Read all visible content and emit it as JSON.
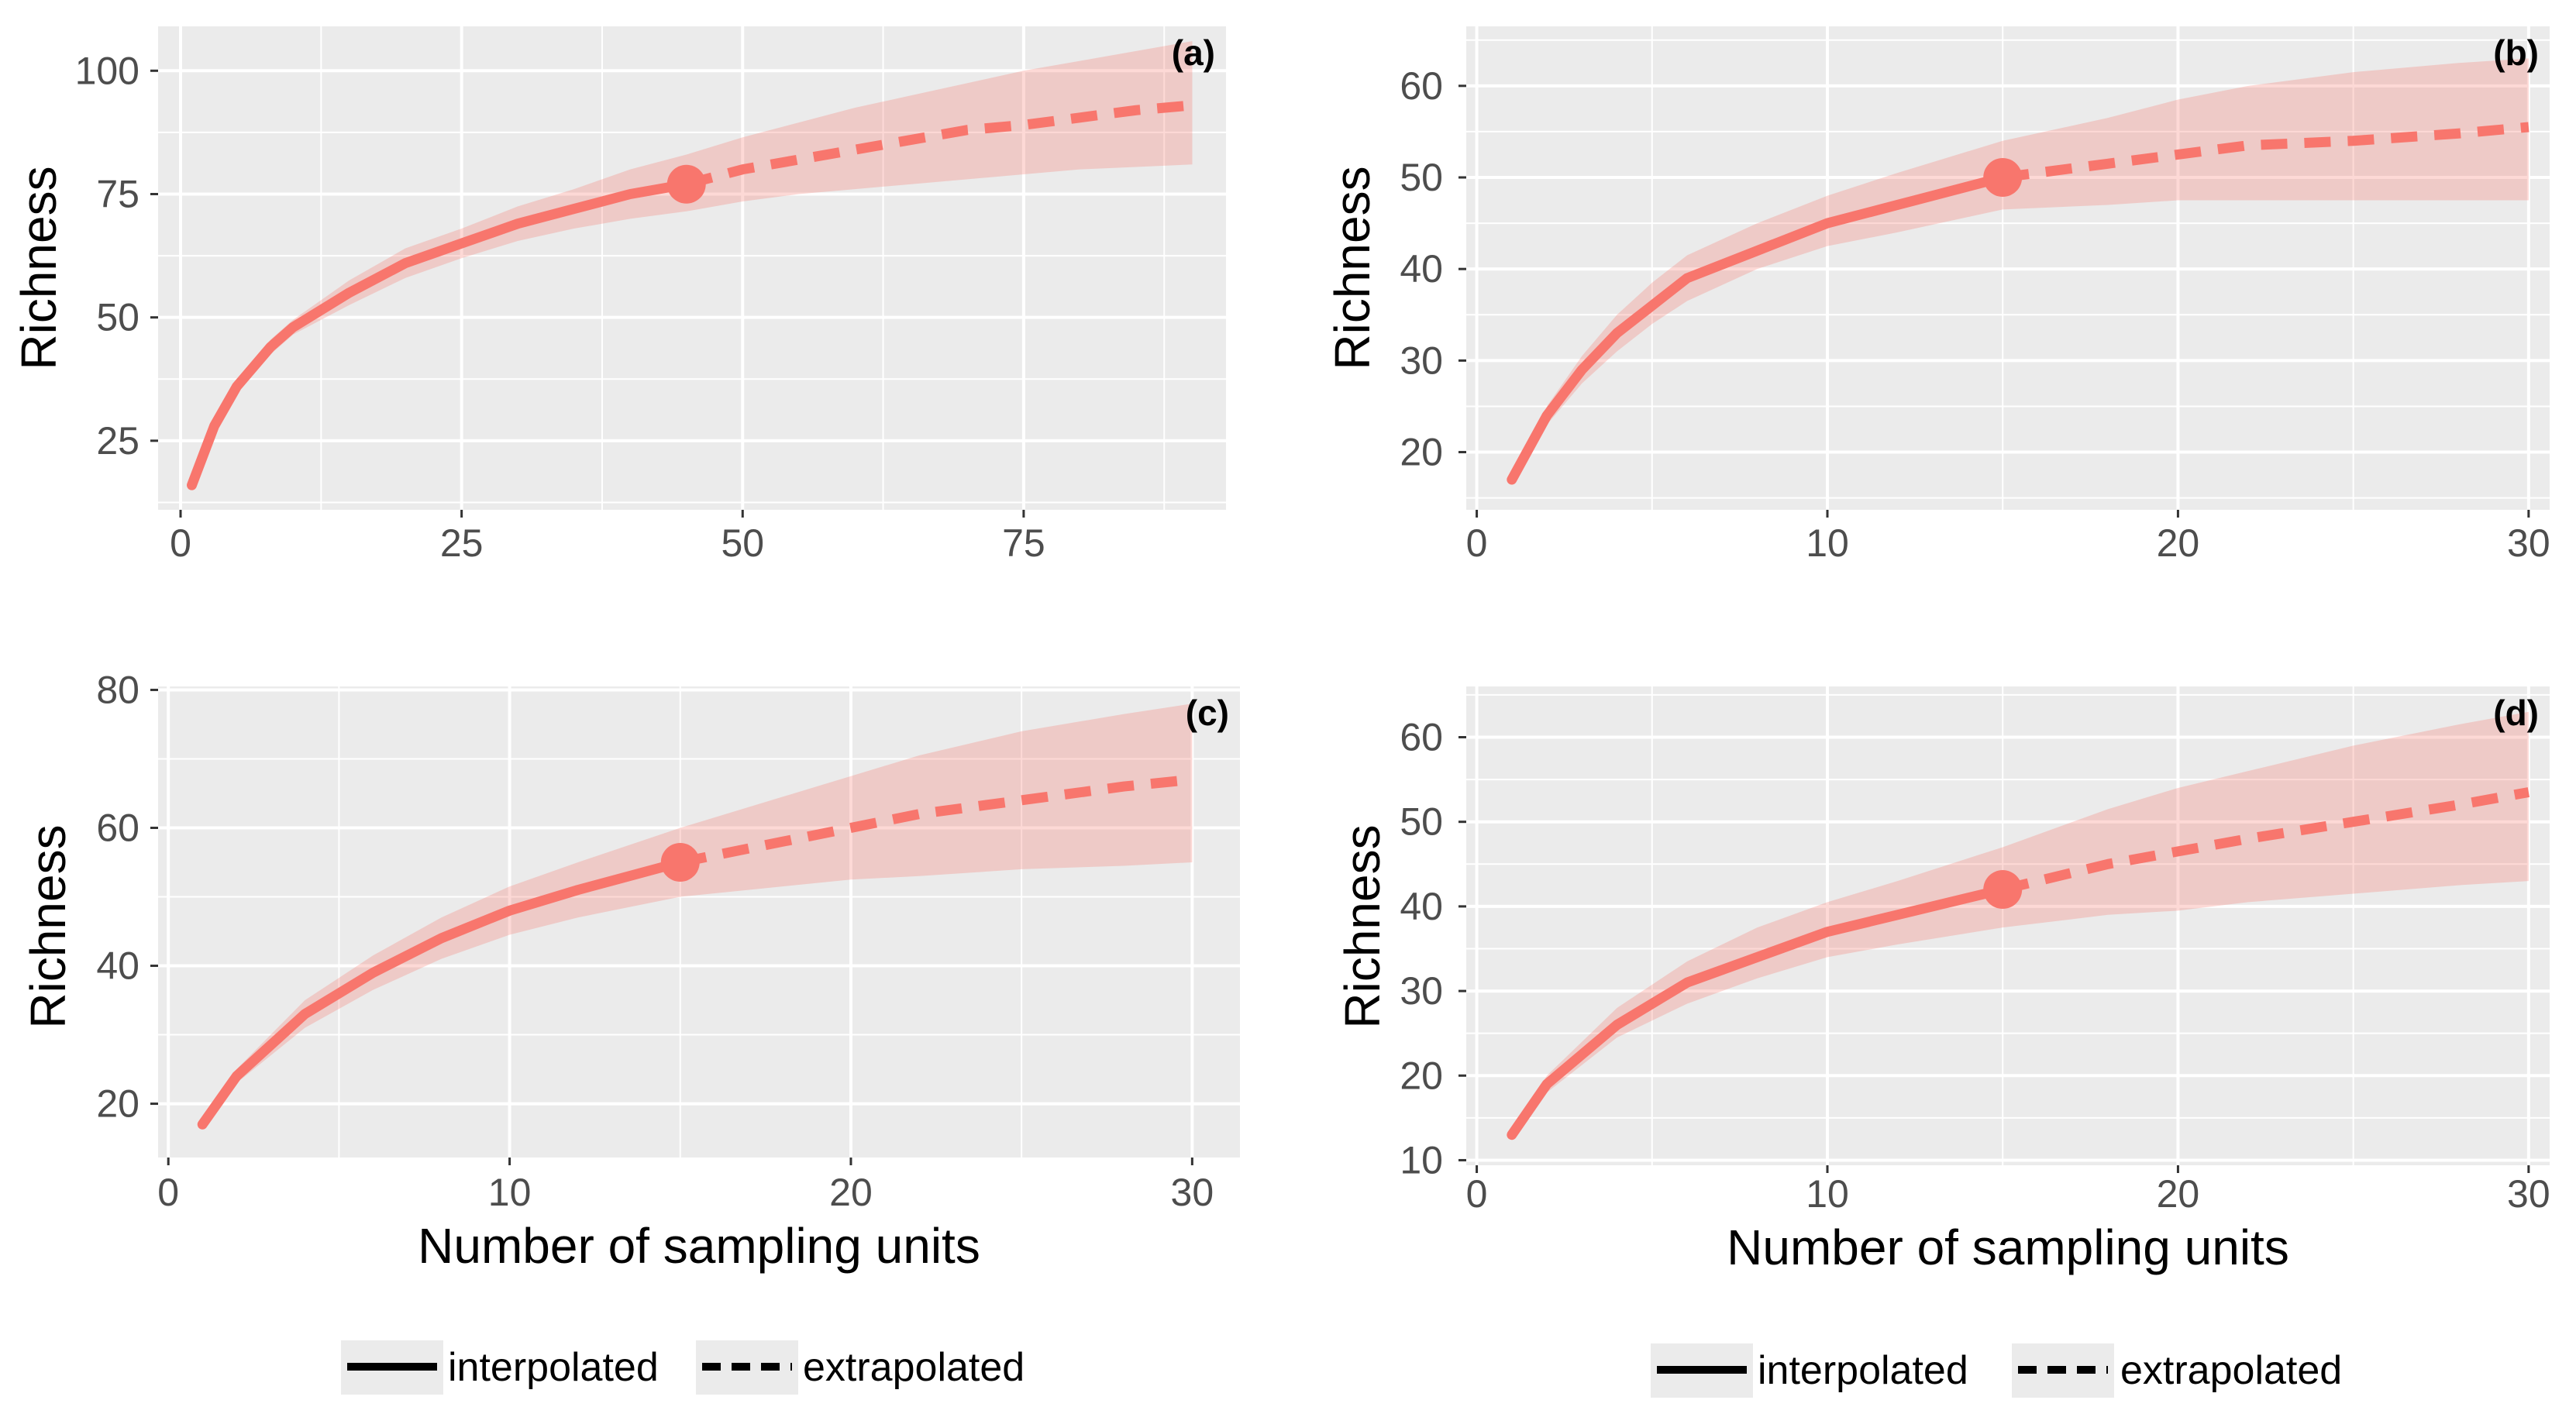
{
  "colors": {
    "line": "#F8766D",
    "band": "#F8766D",
    "panel_bg": "#EBEBEB",
    "grid": "#FFFFFF",
    "tick": "#4D4D4D",
    "legend_key_bg": "#EBEBEB"
  },
  "chart_data": [
    {
      "type": "line",
      "panel": "(a)",
      "title": "",
      "xlabel": "",
      "ylabel": "Richness",
      "xlim": [
        -2,
        93
      ],
      "ylim": [
        11,
        109
      ],
      "xticks": [
        0,
        25,
        50,
        75
      ],
      "yticks": [
        25,
        50,
        75,
        100
      ],
      "grid": true,
      "observed_point": {
        "x": 45,
        "y": 77
      },
      "series": [
        {
          "name": "interpolated",
          "style": "solid",
          "x": [
            1,
            2,
            3,
            5,
            8,
            10,
            15,
            20,
            25,
            30,
            35,
            40,
            45
          ],
          "y": [
            16,
            22,
            28,
            36,
            44,
            48,
            55,
            61,
            65,
            69,
            72,
            75,
            77
          ],
          "lower": [
            16,
            21.5,
            27,
            35,
            42.5,
            46.5,
            52.5,
            58,
            62,
            65.5,
            68,
            70,
            71.5
          ],
          "upper": [
            16,
            22.5,
            29,
            37,
            45.5,
            49.5,
            57.5,
            64,
            68,
            72.5,
            76,
            80,
            83
          ]
        },
        {
          "name": "extrapolated",
          "style": "dashed",
          "x": [
            45,
            50,
            55,
            60,
            65,
            70,
            75,
            80,
            85,
            90
          ],
          "y": [
            77,
            80,
            82,
            84,
            86,
            88,
            89,
            90.5,
            92,
            93
          ],
          "lower": [
            71.5,
            73.5,
            75,
            76,
            77,
            78,
            79,
            80,
            80.5,
            81
          ],
          "upper": [
            83,
            86.5,
            89.5,
            92.5,
            95,
            97.5,
            100,
            102,
            104,
            106
          ]
        }
      ]
    },
    {
      "type": "line",
      "panel": "(b)",
      "title": "",
      "xlabel": "",
      "ylabel": "Richness",
      "xlim": [
        -0.3,
        30.6
      ],
      "ylim": [
        13.7,
        66.5
      ],
      "xticks": [
        0,
        10,
        20,
        30
      ],
      "yticks": [
        20,
        30,
        40,
        50,
        60
      ],
      "grid": true,
      "observed_point": {
        "x": 15,
        "y": 50
      },
      "series": [
        {
          "name": "interpolated",
          "style": "solid",
          "x": [
            1,
            2,
            3,
            4,
            5,
            6,
            8,
            10,
            12,
            15
          ],
          "y": [
            17,
            24,
            29,
            33,
            36,
            39,
            42,
            45,
            47,
            50
          ],
          "lower": [
            17,
            23,
            27.5,
            31,
            34,
            36.5,
            40,
            42.5,
            44,
            46.5
          ],
          "upper": [
            17,
            25,
            30.5,
            35,
            38.5,
            41.5,
            45,
            48,
            50.5,
            54
          ]
        },
        {
          "name": "extrapolated",
          "style": "dashed",
          "x": [
            15,
            18,
            20,
            22,
            25,
            28,
            30
          ],
          "y": [
            50,
            51.5,
            52.5,
            53.5,
            54,
            54.8,
            55.5
          ],
          "lower": [
            46.5,
            47,
            47.5,
            47.5,
            47.5,
            47.5,
            47.5
          ],
          "upper": [
            54,
            56.5,
            58.5,
            60,
            61.5,
            62.5,
            63
          ]
        }
      ]
    },
    {
      "type": "line",
      "panel": "(c)",
      "title": "",
      "xlabel": "Number of sampling units",
      "ylabel": "Richness",
      "xlim": [
        -0.3,
        31.4
      ],
      "ylim": [
        12.2,
        80.5
      ],
      "xticks": [
        0,
        10,
        20,
        30
      ],
      "yticks": [
        20,
        40,
        60,
        80
      ],
      "grid": true,
      "observed_point": {
        "x": 15,
        "y": 55
      },
      "series": [
        {
          "name": "interpolated",
          "style": "solid",
          "x": [
            1,
            2,
            4,
            6,
            8,
            10,
            12,
            15
          ],
          "y": [
            17,
            24,
            33,
            39,
            44,
            48,
            51,
            55
          ],
          "lower": [
            17,
            23,
            31,
            36.5,
            41,
            44.5,
            47,
            50
          ],
          "upper": [
            17,
            25,
            35,
            41.5,
            47,
            51.5,
            55,
            60
          ]
        },
        {
          "name": "extrapolated",
          "style": "dashed",
          "x": [
            15,
            18,
            20,
            22,
            25,
            28,
            30
          ],
          "y": [
            55,
            58,
            60,
            62,
            64,
            66,
            67
          ],
          "lower": [
            50,
            51.5,
            52.5,
            53,
            54,
            54.5,
            55
          ],
          "upper": [
            60,
            64.5,
            67.5,
            70.5,
            74,
            76.5,
            78
          ]
        }
      ]
    },
    {
      "type": "line",
      "panel": "(d)",
      "title": "",
      "xlabel": "Number of sampling units",
      "ylabel": "Richness",
      "xlim": [
        -0.3,
        30.6
      ],
      "ylim": [
        9.4,
        66.0
      ],
      "xticks": [
        0,
        10,
        20,
        30
      ],
      "yticks": [
        10,
        20,
        30,
        40,
        50,
        60
      ],
      "grid": true,
      "observed_point": {
        "x": 15,
        "y": 42
      },
      "series": [
        {
          "name": "interpolated",
          "style": "solid",
          "x": [
            1,
            2,
            4,
            6,
            8,
            10,
            12,
            15
          ],
          "y": [
            13,
            19,
            26,
            31,
            34,
            37,
            39,
            42
          ],
          "lower": [
            13,
            18,
            24.5,
            28.5,
            31.5,
            34,
            35.5,
            37.5
          ],
          "upper": [
            13,
            20,
            28,
            33.5,
            37.5,
            40.5,
            43,
            47
          ]
        },
        {
          "name": "extrapolated",
          "style": "dashed",
          "x": [
            15,
            18,
            20,
            22,
            25,
            28,
            30
          ],
          "y": [
            42,
            45,
            46.5,
            48,
            50,
            52,
            53.5
          ],
          "lower": [
            37.5,
            39,
            39.5,
            40.5,
            41.5,
            42.5,
            43
          ],
          "upper": [
            47,
            51.5,
            54,
            56,
            59,
            61.5,
            63
          ]
        }
      ]
    }
  ],
  "legends": [
    {
      "items": [
        {
          "label": "interpolated",
          "style": "solid"
        },
        {
          "label": "extrapolated",
          "style": "dashed"
        }
      ]
    },
    {
      "items": [
        {
          "label": "interpolated",
          "style": "solid"
        },
        {
          "label": "extrapolated",
          "style": "dashed"
        }
      ]
    }
  ]
}
